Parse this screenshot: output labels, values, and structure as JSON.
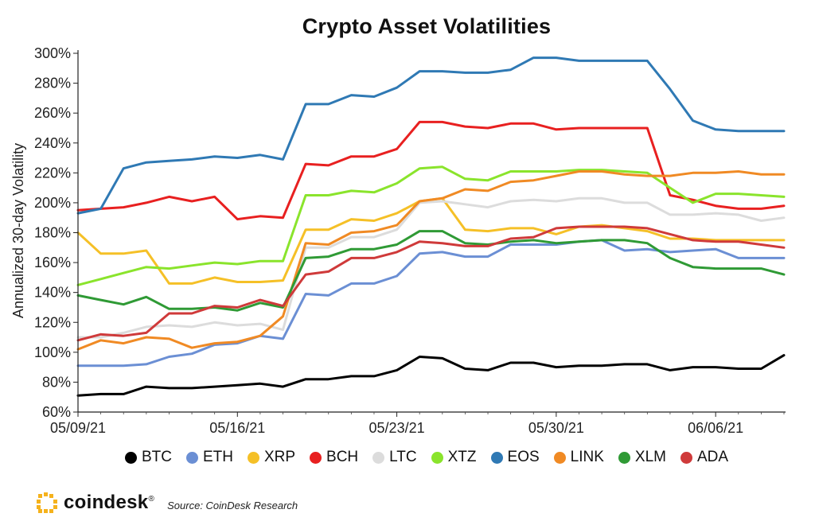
{
  "chart_data": {
    "type": "line",
    "title": "Crypto Asset Volatilities",
    "ylabel": "Annualized 30-day Volatility",
    "xlabel": "",
    "ylim": [
      60,
      300
    ],
    "yticks": [
      60,
      80,
      100,
      120,
      140,
      160,
      180,
      200,
      220,
      240,
      260,
      280,
      300
    ],
    "ytick_suffix": "%",
    "xticks": [
      {
        "day": 0,
        "label": "05/09/21"
      },
      {
        "day": 7,
        "label": "05/16/21"
      },
      {
        "day": 14,
        "label": "05/23/21"
      },
      {
        "day": 21,
        "label": "05/30/21"
      },
      {
        "day": 28,
        "label": "06/06/21"
      }
    ],
    "x": [
      0,
      1,
      2,
      3,
      4,
      5,
      6,
      7,
      8,
      9,
      10,
      11,
      12,
      13,
      14,
      15,
      16,
      17,
      18,
      19,
      20,
      21,
      22,
      23,
      24,
      25,
      26,
      27,
      28,
      29,
      30,
      31
    ],
    "grid": false,
    "legend_position": "bottom",
    "series": [
      {
        "name": "BTC",
        "color": "#000000",
        "values": [
          71,
          72,
          72,
          77,
          76,
          76,
          77,
          78,
          79,
          77,
          82,
          82,
          84,
          84,
          88,
          97,
          96,
          89,
          88,
          93,
          93,
          90,
          91,
          91,
          92,
          92,
          88,
          90,
          90,
          89,
          89,
          98
        ]
      },
      {
        "name": "ETH",
        "color": "#6b8fd4",
        "values": [
          91,
          91,
          91,
          92,
          97,
          99,
          105,
          106,
          111,
          109,
          139,
          138,
          146,
          146,
          151,
          166,
          167,
          164,
          164,
          172,
          172,
          172,
          174,
          175,
          168,
          169,
          167,
          168,
          169,
          163,
          163,
          163
        ]
      },
      {
        "name": "XRP",
        "color": "#f5c027",
        "values": [
          180,
          166,
          166,
          168,
          146,
          146,
          150,
          147,
          147,
          148,
          182,
          182,
          189,
          188,
          193,
          201,
          203,
          182,
          181,
          183,
          183,
          179,
          184,
          185,
          183,
          181,
          176,
          176,
          175,
          175,
          175,
          175
        ]
      },
      {
        "name": "BCH",
        "color": "#e82020",
        "values": [
          195,
          196,
          197,
          200,
          204,
          201,
          204,
          189,
          191,
          190,
          226,
          225,
          231,
          231,
          236,
          254,
          254,
          251,
          250,
          253,
          253,
          249,
          250,
          250,
          250,
          250,
          205,
          202,
          198,
          196,
          196,
          198
        ]
      },
      {
        "name": "LTC",
        "color": "#dcdcdc",
        "values": [
          110,
          110,
          113,
          117,
          118,
          117,
          120,
          118,
          119,
          115,
          170,
          170,
          177,
          177,
          182,
          200,
          201,
          199,
          197,
          201,
          202,
          201,
          203,
          203,
          200,
          200,
          192,
          192,
          193,
          192,
          188,
          190
        ]
      },
      {
        "name": "XTZ",
        "color": "#8ae42c",
        "values": [
          145,
          149,
          153,
          157,
          156,
          158,
          160,
          159,
          161,
          161,
          205,
          205,
          208,
          207,
          213,
          223,
          224,
          216,
          215,
          221,
          221,
          221,
          222,
          222,
          221,
          220,
          210,
          200,
          206,
          206,
          205,
          204
        ]
      },
      {
        "name": "EOS",
        "color": "#2f79b4",
        "values": [
          193,
          196,
          223,
          227,
          228,
          229,
          231,
          230,
          232,
          229,
          266,
          266,
          272,
          271,
          277,
          288,
          288,
          287,
          287,
          289,
          297,
          297,
          295,
          295,
          295,
          295,
          276,
          255,
          249,
          248,
          248,
          248
        ]
      },
      {
        "name": "LINK",
        "color": "#f08a24",
        "values": [
          102,
          108,
          106,
          110,
          109,
          103,
          106,
          107,
          111,
          124,
          173,
          172,
          180,
          181,
          185,
          201,
          203,
          209,
          208,
          214,
          215,
          218,
          221,
          221,
          219,
          218,
          218,
          220,
          220,
          221,
          219,
          219
        ]
      },
      {
        "name": "XLM",
        "color": "#2f9a35",
        "values": [
          138,
          135,
          132,
          137,
          129,
          129,
          130,
          128,
          133,
          130,
          163,
          164,
          169,
          169,
          172,
          181,
          181,
          173,
          172,
          174,
          175,
          173,
          174,
          175,
          175,
          173,
          163,
          157,
          156,
          156,
          156,
          152
        ]
      },
      {
        "name": "ADA",
        "color": "#cf3a3a",
        "values": [
          108,
          112,
          111,
          113,
          126,
          126,
          131,
          130,
          135,
          131,
          152,
          154,
          163,
          163,
          167,
          174,
          173,
          171,
          171,
          176,
          177,
          183,
          184,
          184,
          184,
          183,
          179,
          175,
          174,
          174,
          172,
          170
        ]
      }
    ]
  },
  "footer": {
    "brand": "coindesk",
    "brand_mark": "®",
    "source": "Source: CoinDesk Research",
    "logo_icon": "coindesk-logo-icon"
  }
}
